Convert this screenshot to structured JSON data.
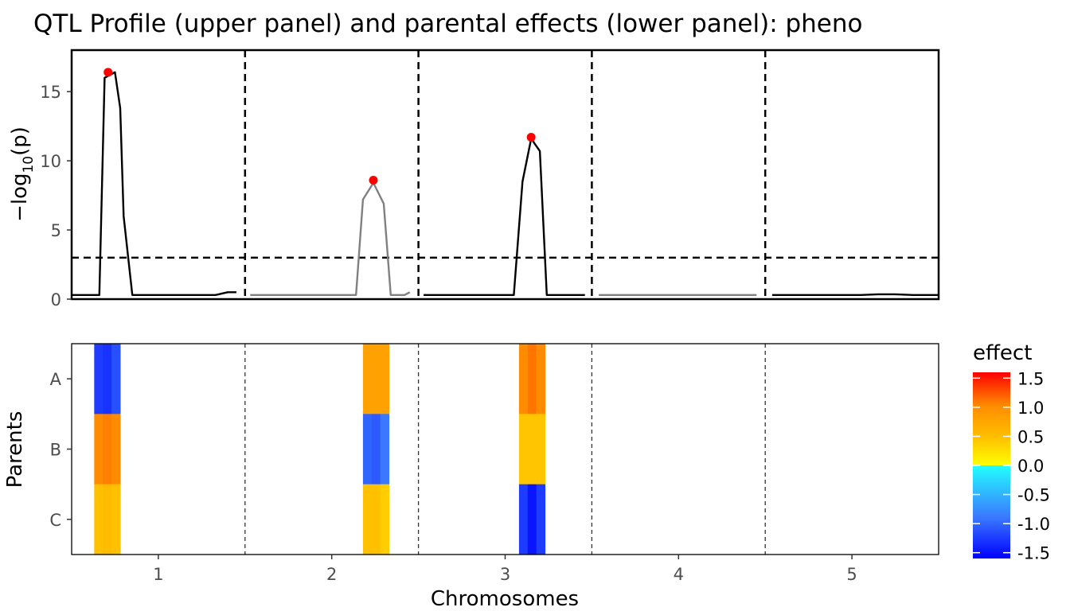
{
  "title": "QTL Profile (upper panel) and parental effects (lower panel): pheno",
  "colors": {
    "line_black": "#000000",
    "line_gray": "#808080",
    "peak": "#ff0000",
    "threshold": "#000000",
    "axis_text": "#4d4d4d"
  },
  "chart_data": [
    {
      "type": "line",
      "panel": "upper",
      "ylabel_base": "−log",
      "ylabel_sub": "10",
      "ylabel_end": "(p)",
      "xlim": [
        0.5,
        5.5
      ],
      "ylim": [
        0,
        18
      ],
      "yticks": [
        0,
        5,
        10,
        15
      ],
      "ytick_labels": [
        "0",
        "5",
        "10",
        "15"
      ],
      "threshold": 3,
      "chromosome_boundaries": [
        1.5,
        2.5,
        3.5,
        4.5
      ],
      "series": [
        {
          "chromosome": 1,
          "color": "black",
          "x": [
            0.5,
            0.57,
            0.6,
            0.66,
            0.69,
            0.75,
            0.78,
            0.8,
            0.85,
            0.9,
            1.0,
            1.1,
            1.2,
            1.3,
            1.33,
            1.4,
            1.45
          ],
          "y": [
            0.3,
            0.3,
            0.3,
            0.3,
            16.0,
            16.4,
            13.8,
            6.0,
            0.3,
            0.3,
            0.3,
            0.3,
            0.3,
            0.3,
            0.3,
            0.5,
            0.5
          ]
        },
        {
          "chromosome": 2,
          "color": "gray",
          "x": [
            1.53,
            1.7,
            1.9,
            2.1,
            2.14,
            2.18,
            2.24,
            2.3,
            2.34,
            2.37,
            2.42,
            2.45
          ],
          "y": [
            0.3,
            0.3,
            0.3,
            0.3,
            0.3,
            7.2,
            8.4,
            6.9,
            0.3,
            0.3,
            0.3,
            0.5
          ]
        },
        {
          "chromosome": 3,
          "color": "black",
          "x": [
            2.53,
            2.7,
            2.9,
            3.05,
            3.1,
            3.15,
            3.2,
            3.24,
            3.3,
            3.4,
            3.46
          ],
          "y": [
            0.3,
            0.3,
            0.3,
            0.3,
            8.5,
            11.6,
            10.7,
            0.3,
            0.3,
            0.3,
            0.3
          ]
        },
        {
          "chromosome": 4,
          "color": "gray",
          "x": [
            3.54,
            3.8,
            4.0,
            4.2,
            4.45
          ],
          "y": [
            0.3,
            0.3,
            0.3,
            0.3,
            0.3
          ]
        },
        {
          "chromosome": 5,
          "color": "black",
          "x": [
            4.54,
            4.8,
            5.0,
            5.05,
            5.15,
            5.25,
            5.35,
            5.5
          ],
          "y": [
            0.3,
            0.3,
            0.3,
            0.3,
            0.35,
            0.35,
            0.3,
            0.3
          ]
        }
      ],
      "peaks": [
        {
          "x": 0.71,
          "y": 16.4
        },
        {
          "x": 2.24,
          "y": 8.6
        },
        {
          "x": 3.15,
          "y": 11.7
        }
      ]
    },
    {
      "type": "heatmap",
      "panel": "lower",
      "xlabel": "Chromosomes",
      "ylabel": "Parents",
      "xlim": [
        0.5,
        5.5
      ],
      "xticks": [
        1,
        2,
        3,
        4,
        5
      ],
      "xtick_labels": [
        "1",
        "2",
        "3",
        "4",
        "5"
      ],
      "parents": [
        "A",
        "B",
        "C"
      ],
      "chromosome_boundaries": [
        1.5,
        2.5,
        3.5,
        4.5
      ],
      "columns": [
        {
          "x0": 0.63,
          "x1": 0.68,
          "effects": [
            -1.3,
            1.0,
            0.5
          ]
        },
        {
          "x0": 0.68,
          "x1": 0.73,
          "effects": [
            -1.35,
            1.05,
            0.55
          ]
        },
        {
          "x0": 0.73,
          "x1": 0.78,
          "effects": [
            -1.2,
            1.0,
            0.5
          ]
        },
        {
          "x0": 2.18,
          "x1": 2.23,
          "effects": [
            0.8,
            -1.1,
            0.5
          ]
        },
        {
          "x0": 2.23,
          "x1": 2.28,
          "effects": [
            0.8,
            -1.15,
            0.5
          ]
        },
        {
          "x0": 2.28,
          "x1": 2.33,
          "effects": [
            0.8,
            -1.0,
            0.4
          ]
        },
        {
          "x0": 3.08,
          "x1": 3.13,
          "effects": [
            1.0,
            0.45,
            -1.3
          ]
        },
        {
          "x0": 3.13,
          "x1": 3.18,
          "effects": [
            1.1,
            0.45,
            -1.5
          ]
        },
        {
          "x0": 3.18,
          "x1": 3.23,
          "effects": [
            1.0,
            0.45,
            -1.3
          ]
        }
      ],
      "legend": {
        "title": "effect",
        "range": [
          -1.6,
          1.6
        ],
        "ticks": [
          1.5,
          1.0,
          0.5,
          0.0,
          -0.5,
          -1.0,
          -1.5
        ],
        "tick_labels": [
          "1.5",
          "1.0",
          "0.5",
          "0.0",
          "-0.5",
          "-1.0",
          "-1.5"
        ],
        "position": "right"
      }
    }
  ]
}
